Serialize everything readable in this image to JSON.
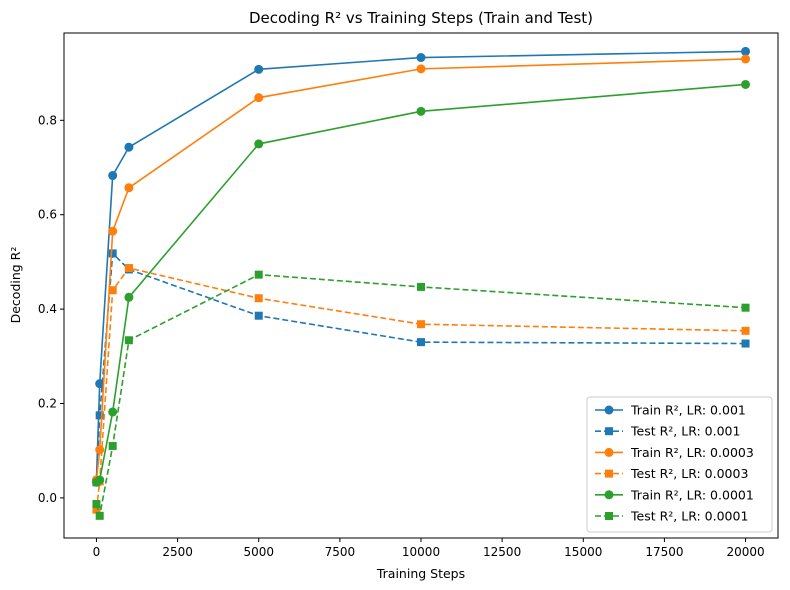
{
  "chart_data": {
    "type": "line",
    "title": "Decoding R² vs Training Steps (Train and Test)",
    "xlabel": "Training Steps",
    "ylabel": "Decoding R²",
    "x": [
      0,
      100,
      500,
      1000,
      5000,
      10000,
      20000
    ],
    "xlim": [
      -1000,
      21000
    ],
    "ylim": [
      -0.085,
      0.985
    ],
    "xticks": [
      0,
      2500,
      5000,
      7500,
      10000,
      12500,
      15000,
      17500,
      20000
    ],
    "xtick_labels": [
      "0",
      "2500",
      "5000",
      "7500",
      "10000",
      "12500",
      "15000",
      "17500",
      "20000"
    ],
    "yticks": [
      0.0,
      0.2,
      0.4,
      0.6,
      0.8
    ],
    "ytick_labels": [
      "0.0",
      "0.2",
      "0.4",
      "0.6",
      "0.8"
    ],
    "grid": false,
    "legend_position": "lower-right",
    "series": [
      {
        "name": "Train R², LR: 0.001",
        "color": "#1f77b4",
        "style": "solid",
        "marker": "circle",
        "values": [
          0.038,
          0.242,
          0.683,
          0.743,
          0.908,
          0.933,
          0.946
        ]
      },
      {
        "name": "Test R², LR: 0.001",
        "color": "#1f77b4",
        "style": "dashed",
        "marker": "square",
        "values": [
          0.033,
          0.175,
          0.518,
          0.484,
          0.386,
          0.33,
          0.327
        ]
      },
      {
        "name": "Train R², LR: 0.0003",
        "color": "#ff7f0e",
        "style": "solid",
        "marker": "circle",
        "values": [
          0.038,
          0.102,
          0.565,
          0.657,
          0.848,
          0.909,
          0.93
        ]
      },
      {
        "name": "Test R², LR: 0.0003",
        "color": "#ff7f0e",
        "style": "dashed",
        "marker": "square",
        "values": [
          -0.025,
          0.035,
          0.44,
          0.487,
          0.423,
          0.368,
          0.354
        ]
      },
      {
        "name": "Train R², LR: 0.0001",
        "color": "#2ca02c",
        "style": "solid",
        "marker": "circle",
        "values": [
          0.033,
          0.038,
          0.182,
          0.425,
          0.75,
          0.819,
          0.876
        ]
      },
      {
        "name": "Test R², LR: 0.0001",
        "color": "#2ca02c",
        "style": "dashed",
        "marker": "square",
        "values": [
          -0.013,
          -0.038,
          0.11,
          0.334,
          0.473,
          0.447,
          0.403
        ]
      }
    ]
  }
}
